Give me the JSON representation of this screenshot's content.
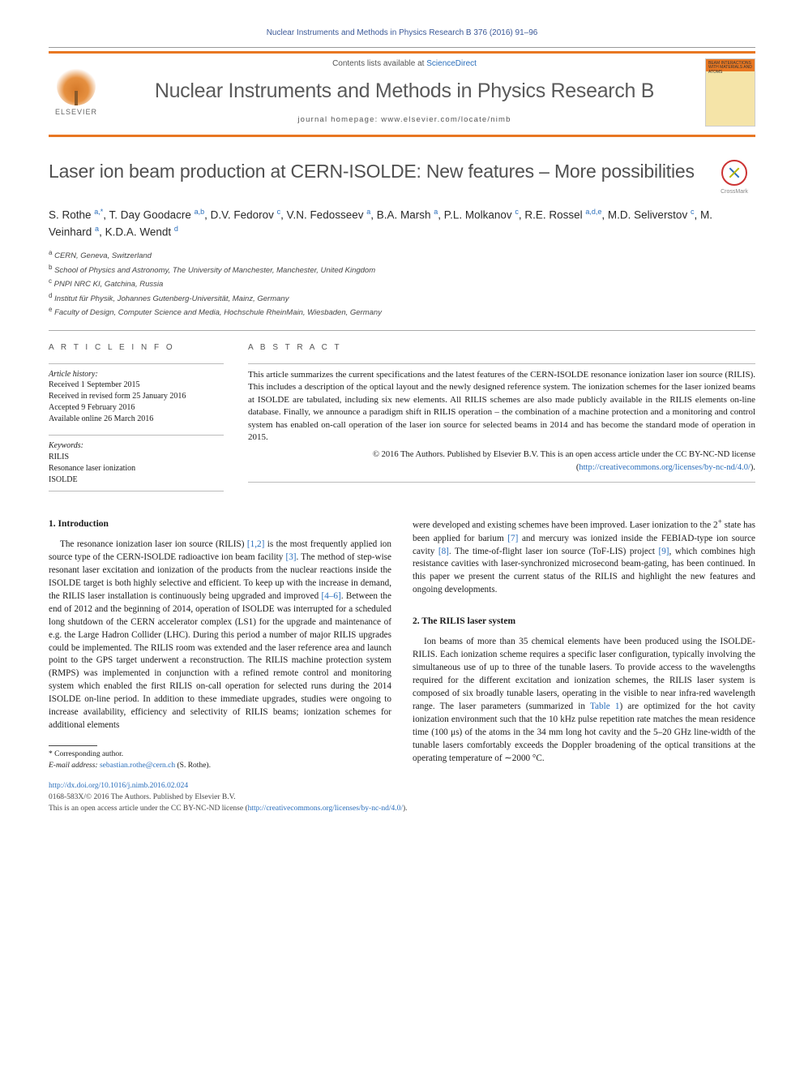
{
  "journal_ref": "Nuclear Instruments and Methods in Physics Research B 376 (2016) 91–96",
  "header": {
    "contents_line_pre": "Contents lists available at ",
    "contents_link": "ScienceDirect",
    "journal_name": "Nuclear Instruments and Methods in Physics Research B",
    "homepage_line": "journal homepage: www.elsevier.com/locate/nimb",
    "elsevier": "ELSEVIER",
    "cover_text": "BEAM INTERACTIONS WITH MATERIALS AND ATOMS"
  },
  "title": "Laser ion beam production at CERN-ISOLDE: New features – More possibilities",
  "crossmark": "CrossMark",
  "authors_html": "S. Rothe <sup>a,*</sup>, T. Day Goodacre <sup>a,b</sup>, D.V. Fedorov <sup>c</sup>, V.N. Fedosseev <sup>a</sup>, B.A. Marsh <sup>a</sup>, P.L. Molkanov <sup>c</sup>, R.E. Rossel <sup>a,d,e</sup>, M.D. Seliverstov <sup>c</sup>, M. Veinhard <sup>a</sup>, K.D.A. Wendt <sup>d</sup>",
  "affiliations": [
    {
      "sup": "a",
      "text": "CERN, Geneva, Switzerland"
    },
    {
      "sup": "b",
      "text": "School of Physics and Astronomy, The University of Manchester, Manchester, United Kingdom"
    },
    {
      "sup": "c",
      "text": "PNPI NRC KI, Gatchina, Russia"
    },
    {
      "sup": "d",
      "text": "Institut für Physik, Johannes Gutenberg-Universität, Mainz, Germany"
    },
    {
      "sup": "e",
      "text": "Faculty of Design, Computer Science and Media, Hochschule RheinMain, Wiesbaden, Germany"
    }
  ],
  "info": {
    "head": "A R T I C L E   I N F O",
    "history_head": "Article history:",
    "history": [
      "Received 1 September 2015",
      "Received in revised form 25 January 2016",
      "Accepted 9 February 2016",
      "Available online 26 March 2016"
    ],
    "keywords_head": "Keywords:",
    "keywords": [
      "RILIS",
      "Resonance laser ionization",
      "ISOLDE"
    ]
  },
  "abstract": {
    "head": "A B S T R A C T",
    "text": "This article summarizes the current specifications and the latest features of the CERN-ISOLDE resonance ionization laser ion source (RILIS). This includes a description of the optical layout and the newly designed reference system. The ionization schemes for the laser ionized beams at ISOLDE are tabulated, including six new elements. All RILIS schemes are also made publicly available in the RILIS elements on-line database. Finally, we announce a paradigm shift in RILIS operation – the combination of a machine protection and a monitoring and control system has enabled on-call operation of the laser ion source for selected beams in 2014 and has become the standard mode of operation in 2015.",
    "copyright_pre": "© 2016 The Authors. Published by Elsevier B.V. This is an open access article under the CC BY-NC-ND license (",
    "copyright_link": "http://creativecommons.org/licenses/by-nc-nd/4.0/",
    "copyright_post": ")."
  },
  "sections": {
    "intro_head": "1. Introduction",
    "intro_text": "The resonance ionization laser ion source (RILIS) <span class=\"ref-link\">[1,2]</span> is the most frequently applied ion source type of the CERN-ISOLDE radioactive ion beam facility <span class=\"ref-link\">[3]</span>. The method of step-wise resonant laser excitation and ionization of the products from the nuclear reactions inside the ISOLDE target is both highly selective and efficient. To keep up with the increase in demand, the RILIS laser installation is continuously being upgraded and improved <span class=\"ref-link\">[4–6]</span>. Between the end of 2012 and the beginning of 2014, operation of ISOLDE was interrupted for a scheduled long shutdown of the CERN accelerator complex (LS1) for the upgrade and maintenance of e.g. the Large Hadron Collider (LHC). During this period a number of major RILIS upgrades could be implemented. The RILIS room was extended and the laser reference area and launch point to the GPS target underwent a reconstruction. The RILIS machine protection system (RMPS) was implemented in conjunction with a refined remote control and monitoring system which enabled the first RILIS on-call operation for selected runs during the 2014 ISOLDE on-line period. In addition to these immediate upgrades, studies were ongoing to increase availability, efficiency and selectivity of RILIS beams; ionization schemes for additional elements",
    "col2_top": "were developed and existing schemes have been improved. Laser ionization to the 2<sup>+</sup> state has been applied for barium <span class=\"ref-link\">[7]</span> and mercury was ionized inside the FEBIAD-type ion source cavity <span class=\"ref-link\">[8]</span>. The time-of-flight laser ion source (ToF-LIS) project <span class=\"ref-link\">[9]</span>, which combines high resistance cavities with laser-synchronized microsecond beam-gating, has been continued. In this paper we present the current status of the RILIS and highlight the new features and ongoing developments.",
    "system_head": "2. The RILIS laser system",
    "system_text": "Ion beams of more than 35 chemical elements have been produced using the ISOLDE-RILIS. Each ionization scheme requires a specific laser configuration, typically involving the simultaneous use of up to three of the tunable lasers. To provide access to the wavelengths required for the different excitation and ionization schemes, the RILIS laser system is composed of six broadly tunable lasers, operating in the visible to near infra-red wavelength range. The laser parameters (summarized in <span class=\"ref-link\">Table 1</span>) are optimized for the hot cavity ionization environment such that the 10 kHz pulse repetition rate matches the mean residence time (100 μs) of the atoms in the 34 mm long hot cavity and the 5–20 GHz line-width of the tunable lasers comfortably exceeds the Doppler broadening of the optical transitions at the operating temperature of ∼2000 °C."
  },
  "footnotes": {
    "corr": "* Corresponding author.",
    "email_label": "E-mail address: ",
    "email": "sebastian.rothe@cern.ch",
    "email_paren": " (S. Rothe)."
  },
  "doi": {
    "url": "http://dx.doi.org/10.1016/j.nimb.2016.02.024",
    "issn_line": "0168-583X/© 2016 The Authors. Published by Elsevier B.V.",
    "license_pre": "This is an open access article under the CC BY-NC-ND license (",
    "license_link": "http://creativecommons.org/licenses/by-nc-nd/4.0/",
    "license_post": ")."
  },
  "colors": {
    "accent": "#e87722",
    "link": "#2a6ebb",
    "heading_gray": "#505050"
  }
}
